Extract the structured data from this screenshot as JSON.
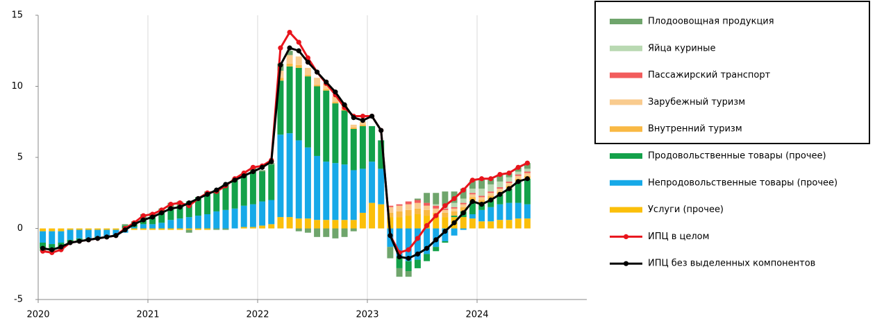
{
  "chart_data": {
    "type": "bar",
    "categories": [
      "2020",
      null,
      null,
      null,
      null,
      null,
      null,
      null,
      null,
      null,
      null,
      null,
      "2021",
      null,
      null,
      null,
      null,
      null,
      null,
      null,
      null,
      null,
      null,
      null,
      "2022",
      null,
      null,
      null,
      null,
      null,
      null,
      null,
      null,
      null,
      null,
      null,
      "2023",
      null,
      null,
      null,
      null,
      null,
      null,
      null,
      null,
      null,
      null,
      null,
      "2024",
      null,
      null,
      null,
      null,
      null,
      null,
      null,
      null,
      null,
      null,
      null
    ],
    "ylim": [
      -5,
      15
    ],
    "yticks": [
      -5,
      0,
      5,
      10,
      15
    ],
    "grid": true,
    "legend": "right",
    "series": [
      {
        "name": "Плодоовощная продукция",
        "type": "bar",
        "color": "#6fa56c",
        "values": [
          -0.2,
          -0.2,
          -0.2,
          0,
          0,
          0,
          0,
          0,
          0,
          0.1,
          0.1,
          0.3,
          0.2,
          0.2,
          0.3,
          0.3,
          -0.2,
          0,
          0.1,
          -0.1,
          -0.1,
          0.1,
          0.2,
          0.3,
          0.1,
          0.1,
          0.5,
          0.3,
          -0.2,
          -0.3,
          -0.6,
          -0.6,
          -0.7,
          -0.6,
          -0.2,
          0,
          0,
          0,
          -0.8,
          -0.6,
          -0.4,
          0.1,
          0.7,
          0.8,
          1.0,
          0.8,
          0.7,
          0.6,
          0.7,
          0.4,
          0.5,
          0.3,
          0.3,
          0.4,
          null,
          null,
          null,
          null,
          null,
          null
        ]
      },
      {
        "name": "Яйца куриные",
        "type": "bar",
        "color": "#b9d9b2",
        "values": [
          0,
          0,
          0,
          0,
          0,
          0,
          0,
          0,
          0,
          0,
          0,
          0,
          0,
          0,
          0,
          0,
          0,
          0,
          0,
          0,
          0,
          0,
          0,
          0,
          0,
          0,
          0,
          0,
          0,
          0,
          0,
          0,
          0,
          0,
          0,
          0,
          0,
          0,
          0,
          0,
          0,
          0,
          0,
          0.1,
          0.2,
          0.3,
          0.3,
          0.3,
          0.5,
          0.5,
          0.4,
          0.3,
          0.2,
          0.2,
          null,
          null,
          null,
          null,
          null,
          null
        ]
      },
      {
        "name": "Пассажирский транспорт",
        "type": "bar",
        "color": "#f25c5c",
        "values": [
          0,
          0,
          0,
          0,
          0,
          0,
          0,
          0,
          0,
          0,
          0,
          0,
          0,
          0,
          0,
          0,
          0,
          0,
          0,
          0,
          0,
          0,
          0,
          0,
          0,
          0,
          0,
          0,
          0,
          0,
          0,
          0,
          0,
          0,
          0,
          0,
          0,
          0,
          0.1,
          0.1,
          0.2,
          0.2,
          0.2,
          0.2,
          0.1,
          0.1,
          0.1,
          0.1,
          0.1,
          0.1,
          0.1,
          0.1,
          0.1,
          0.1,
          null,
          null,
          null,
          null,
          null,
          null
        ]
      },
      {
        "name": "Зарубежный туризм",
        "type": "bar",
        "color": "#f9cb8e",
        "values": [
          0,
          0,
          0,
          0,
          0,
          0,
          0,
          0,
          0,
          0,
          0,
          0,
          0,
          0,
          0,
          0,
          0,
          0,
          0,
          0,
          0,
          0,
          0,
          0,
          0,
          0,
          0.5,
          0.6,
          0.6,
          0.5,
          0.5,
          0.4,
          0.4,
          0.3,
          0.2,
          0.2,
          0,
          0,
          0.4,
          0.4,
          0.4,
          0.4,
          0.3,
          0.3,
          0.2,
          0.2,
          0.2,
          0.2,
          0.2,
          0.2,
          0.2,
          0.2,
          0.2,
          0.2,
          null,
          null,
          null,
          null,
          null,
          null
        ]
      },
      {
        "name": "Внутренний туризм",
        "type": "bar",
        "color": "#f9b944",
        "values": [
          0,
          0,
          0,
          0,
          0,
          0,
          0,
          0,
          0,
          0,
          0,
          0,
          0,
          0,
          0,
          0,
          0,
          0,
          0,
          0,
          0,
          0,
          0,
          0,
          0,
          0,
          0.2,
          0.2,
          0.2,
          0.1,
          0.1,
          0.1,
          0.1,
          0.1,
          0.1,
          0.1,
          0,
          0,
          0.3,
          0.4,
          0.4,
          0.4,
          0.4,
          0.3,
          0.3,
          0.3,
          0.3,
          0.3,
          0.3,
          0.3,
          0.2,
          0.2,
          0.2,
          0.2,
          null,
          null,
          null,
          null,
          null,
          null
        ]
      },
      {
        "name": "Продовольственные товары (прочее)",
        "type": "bar",
        "color": "#13a14a",
        "values": [
          -0.4,
          -0.4,
          -0.3,
          -0.2,
          -0.2,
          -0.1,
          -0.1,
          0,
          0,
          0.2,
          0.3,
          0.4,
          0.6,
          0.8,
          0.9,
          0.9,
          1.1,
          1.3,
          1.5,
          1.5,
          1.8,
          2.0,
          2.1,
          2.3,
          2.1,
          2.5,
          3.8,
          4.7,
          5.1,
          5.0,
          4.9,
          5.0,
          4.2,
          3.8,
          2.9,
          3.0,
          2.5,
          2.0,
          0,
          -0.8,
          -0.7,
          -0.6,
          -0.5,
          -0.3,
          -0.1,
          0.1,
          0.4,
          0.9,
          0.4,
          0.5,
          0.7,
          1.0,
          1.5,
          1.8,
          null,
          null,
          null,
          null,
          null,
          null
        ]
      },
      {
        "name": "Непродовольственные товары (прочее)",
        "type": "bar",
        "color": "#16a9e8",
        "values": [
          -0.8,
          -0.9,
          -0.8,
          -0.7,
          -0.6,
          -0.6,
          -0.5,
          -0.5,
          -0.4,
          -0.2,
          0.1,
          0.3,
          0.3,
          0.4,
          0.6,
          0.7,
          0.8,
          0.9,
          1.0,
          1.2,
          1.3,
          1.4,
          1.5,
          1.6,
          1.7,
          1.7,
          5.8,
          5.9,
          5.5,
          5.0,
          4.5,
          4.1,
          4.0,
          3.9,
          3.5,
          3.1,
          2.9,
          2.5,
          -1.3,
          -2.0,
          -2.3,
          -2.2,
          -1.8,
          -1.3,
          -0.9,
          -0.5,
          -0.1,
          0.3,
          0.8,
          1.0,
          1.1,
          1.2,
          1.1,
          1.0,
          null,
          null,
          null,
          null,
          null,
          null
        ]
      },
      {
        "name": "Услуги (прочее)",
        "type": "bar",
        "color": "#fbbf0a",
        "values": [
          -0.2,
          -0.2,
          -0.2,
          -0.1,
          -0.1,
          -0.1,
          -0.1,
          -0.1,
          -0.1,
          -0.1,
          -0.1,
          -0.1,
          -0.1,
          -0.1,
          -0.1,
          -0.1,
          -0.1,
          -0.1,
          -0.1,
          0,
          0,
          0,
          0.1,
          0.1,
          0.2,
          0.3,
          0.8,
          0.8,
          0.7,
          0.7,
          0.6,
          0.6,
          0.6,
          0.6,
          0.6,
          1.1,
          1.8,
          1.7,
          0.8,
          0.8,
          0.9,
          1.0,
          0.9,
          0.8,
          0.8,
          0.8,
          0.8,
          0.7,
          0.5,
          0.5,
          0.6,
          0.6,
          0.7,
          0.7,
          null,
          null,
          null,
          null,
          null,
          null
        ]
      },
      {
        "name": "ИПЦ в целом",
        "type": "line",
        "color": "#e8141c",
        "values": [
          -1.6,
          -1.7,
          -1.5,
          -1.0,
          -0.9,
          -0.8,
          -0.7,
          -0.6,
          -0.5,
          0,
          0.4,
          0.9,
          1.0,
          1.3,
          1.7,
          1.8,
          1.6,
          2.1,
          2.5,
          2.6,
          3.0,
          3.5,
          3.9,
          4.3,
          4.4,
          4.8,
          12.7,
          13.8,
          13.1,
          12.0,
          11.0,
          10.2,
          9.4,
          8.5,
          7.9,
          7.9,
          7.9,
          6.9,
          -0.5,
          -1.7,
          -1.5,
          -0.7,
          0.2,
          0.9,
          1.6,
          2.1,
          2.7,
          3.4,
          3.5,
          3.5,
          3.8,
          3.9,
          4.3,
          4.6,
          null,
          null,
          null,
          null,
          null,
          null
        ]
      },
      {
        "name": "ИПЦ без выделенных компонентов",
        "type": "line",
        "color": "#000000",
        "values": [
          -1.4,
          -1.5,
          -1.3,
          -1.0,
          -0.9,
          -0.8,
          -0.7,
          -0.6,
          -0.5,
          -0.1,
          0.3,
          0.6,
          0.8,
          1.1,
          1.4,
          1.5,
          1.8,
          2.1,
          2.4,
          2.7,
          3.1,
          3.4,
          3.7,
          4.0,
          4.3,
          4.7,
          11.5,
          12.7,
          12.5,
          11.7,
          11.0,
          10.3,
          9.6,
          8.7,
          7.8,
          7.6,
          7.9,
          6.9,
          -0.5,
          -2.0,
          -2.1,
          -1.8,
          -1.4,
          -0.8,
          -0.2,
          0.4,
          1.1,
          1.9,
          1.7,
          2.0,
          2.4,
          2.8,
          3.3,
          3.5,
          null,
          null,
          null,
          null,
          null,
          null
        ]
      }
    ]
  }
}
